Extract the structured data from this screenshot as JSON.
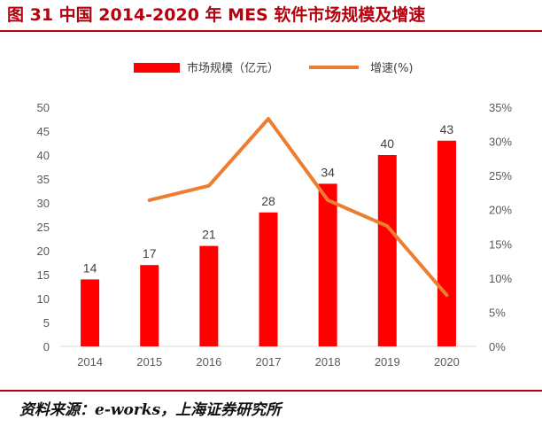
{
  "figure": {
    "title": "图 31 中国 2014-2020 年 MES 软件市场规模及增速",
    "source": "资料来源：e-works，上海证券研究所"
  },
  "colors": {
    "accent": "#b4010d",
    "bar": "#ff0000",
    "line": "#ed7d31"
  },
  "chart_data": {
    "type": "bar",
    "categories": [
      "2014",
      "2015",
      "2016",
      "2017",
      "2018",
      "2019",
      "2020"
    ],
    "series": [
      {
        "name": "市场规模（亿元）",
        "type": "bar",
        "axis": "left",
        "values": [
          14,
          17,
          21,
          28,
          34,
          40,
          43
        ]
      },
      {
        "name": "增速(%)",
        "type": "line",
        "axis": "right",
        "values": [
          null,
          0.214,
          0.235,
          0.333,
          0.214,
          0.176,
          0.075
        ]
      }
    ],
    "data_labels": [
      "14",
      "17",
      "21",
      "28",
      "34",
      "40",
      "43"
    ],
    "y_left": {
      "ylim": [
        0,
        50
      ],
      "ticks": [
        "0",
        "5",
        "10",
        "15",
        "20",
        "25",
        "30",
        "35",
        "40",
        "45",
        "50"
      ]
    },
    "y_right": {
      "ylim": [
        0,
        0.35
      ],
      "ticks": [
        "0%",
        "5%",
        "10%",
        "15%",
        "20%",
        "25%",
        "30%",
        "35%"
      ]
    },
    "legend_position": "top",
    "grid": false
  }
}
